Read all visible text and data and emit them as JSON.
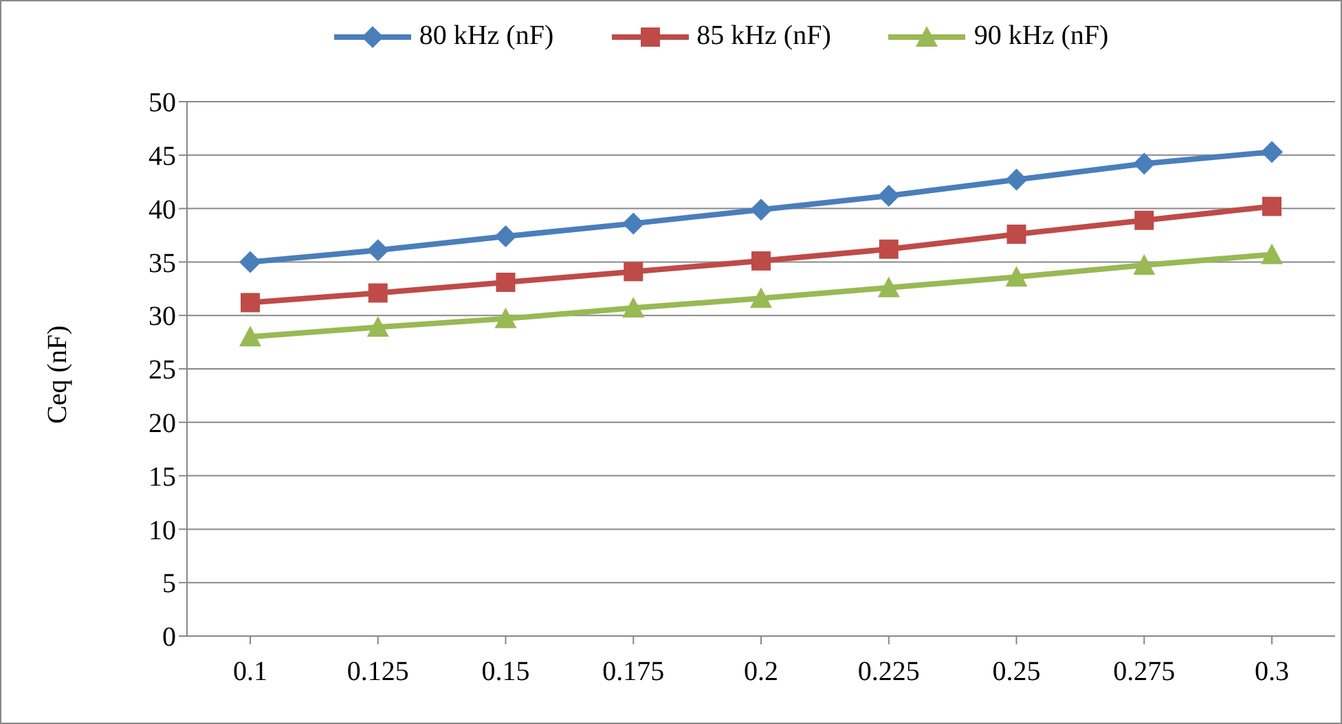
{
  "chart_data": {
    "type": "line",
    "ylabel": "Ceq (nF)",
    "categories": [
      "0.1",
      "0.125",
      "0.15",
      "0.175",
      "0.2",
      "0.225",
      "0.25",
      "0.275",
      "0.3"
    ],
    "series": [
      {
        "name": "80 kHz (nF)",
        "color": "#4a7ebb",
        "marker": "diamond",
        "values": [
          35,
          36.1,
          37.4,
          38.6,
          39.9,
          41.2,
          42.7,
          44.2,
          45.3
        ]
      },
      {
        "name": "85 kHz (nF)",
        "color": "#be4b48",
        "marker": "square",
        "values": [
          31.2,
          32.1,
          33.1,
          34.1,
          35.1,
          36.2,
          37.6,
          38.9,
          40.2
        ]
      },
      {
        "name": "90 kHz (nF)",
        "color": "#98b954",
        "marker": "triangle",
        "values": [
          28,
          28.9,
          29.7,
          30.7,
          31.6,
          32.6,
          33.6,
          34.7,
          35.7
        ]
      }
    ],
    "ylim": [
      0,
      50
    ],
    "yticks": [
      0,
      5,
      10,
      15,
      20,
      25,
      30,
      35,
      40,
      45,
      50
    ],
    "grid": "y",
    "legend": "top"
  }
}
